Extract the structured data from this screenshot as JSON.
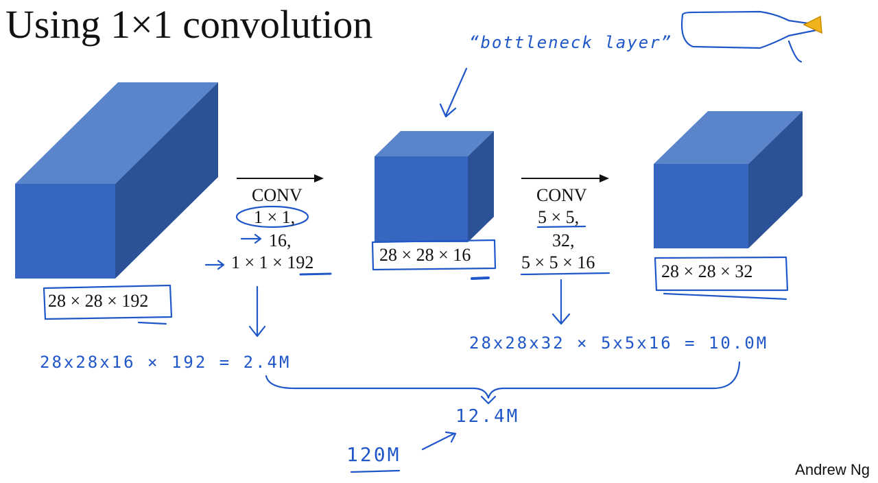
{
  "title": "Using 1×1 convolution",
  "blocks": [
    {
      "label": "28 × 28 × 192"
    },
    {
      "label": "28 × 28 × 16"
    },
    {
      "label": "28 × 28 × 32"
    }
  ],
  "conv1": {
    "op": "CONV",
    "kernel": "1 × 1,",
    "filters": "16,",
    "filter_shape": "1 × 1 × 192"
  },
  "conv2": {
    "op": "CONV",
    "kernel": "5 × 5,",
    "filters": "32,",
    "filter_shape": "5 × 5 × 16"
  },
  "annotations": {
    "bottleneck": "“bottleneck layer”",
    "cost1": "28x28x16 × 192 = 2.4M",
    "cost2": "28x28x32 × 5x5x16 = 10.0M",
    "total": "12.4M",
    "previous": "120M"
  },
  "credit": "Andrew Ng",
  "colors": {
    "cube_front": "#3666c0",
    "cube_top": "#5a85cb",
    "cube_side": "#2b5196",
    "ink": "#1f56c8"
  }
}
